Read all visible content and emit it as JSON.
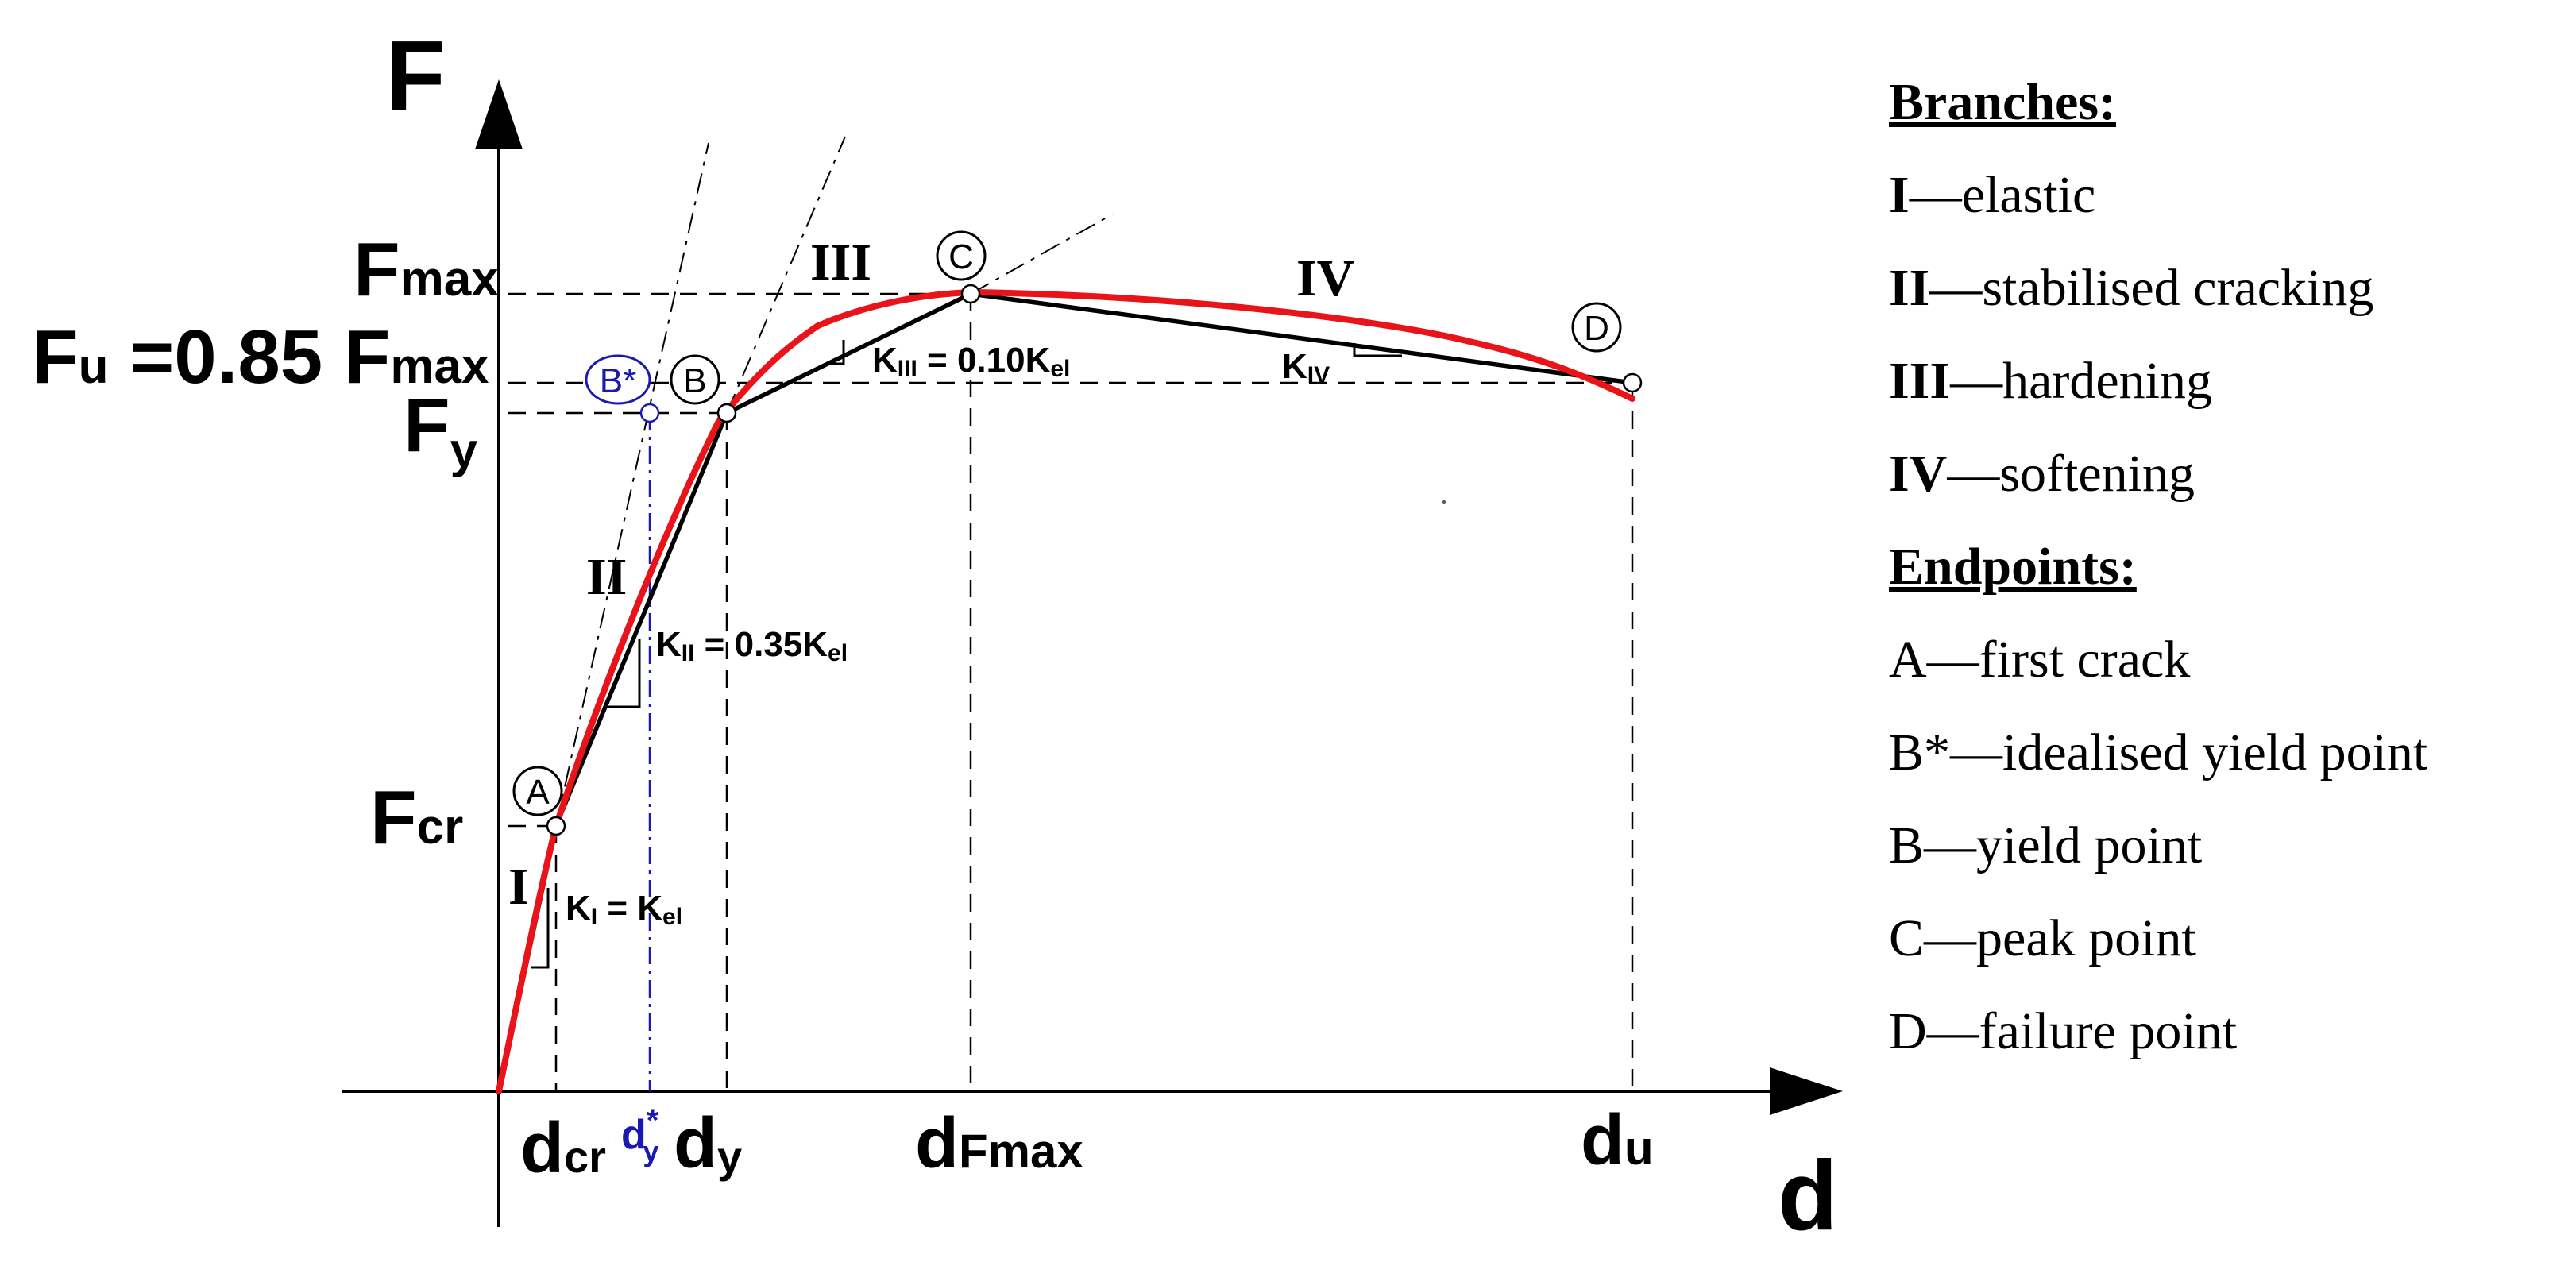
{
  "axes": {
    "y_symbol": "F",
    "x_symbol": "d"
  },
  "force_levels": {
    "F_max": {
      "main": "F",
      "sub": "max"
    },
    "F_u": {
      "main_a": "F",
      "sub_a": "u",
      "main_b": " =0.85 F",
      "sub_b": "max"
    },
    "F_y": {
      "main": "F",
      "sub": "y"
    },
    "F_cr": {
      "main": "F",
      "sub": "cr"
    }
  },
  "displacement_levels": {
    "d_cr": {
      "main": "d",
      "sub": "cr"
    },
    "d_y_star": {
      "main": "d",
      "sub": "y",
      "sup": "*"
    },
    "d_y": {
      "main": "d",
      "sub": "y"
    },
    "d_Fmax": {
      "main": "d",
      "sub": "Fmax"
    },
    "d_u": {
      "main": "d",
      "sub": "u"
    }
  },
  "branch_labels": {
    "I": "I",
    "II": "II",
    "III": "III",
    "IV": "IV"
  },
  "slopes": {
    "K_I": {
      "k": "K",
      "k_sub": "I",
      "rest": " = K",
      "rest_sub": "el"
    },
    "K_II": {
      "k": "K",
      "k_sub": "II",
      "rest": " = 0.35K",
      "rest_sub": "el"
    },
    "K_III": {
      "k": "K",
      "k_sub": "III",
      "rest": " = 0.10K",
      "rest_sub": "el"
    },
    "K_IV": {
      "k": "K",
      "k_sub": "IV"
    }
  },
  "points": {
    "A": "A",
    "B_star": "B*",
    "B": "B",
    "C": "C",
    "D": "D"
  },
  "colors": {
    "experimental_curve": "#e8141a",
    "idealised_curve": "#000000",
    "b_star": "#1a1ab0"
  },
  "legend": {
    "branches_heading": "Branches:",
    "branches": [
      {
        "key": "I",
        "text": "—elastic"
      },
      {
        "key": "II",
        "text": "—stabilised cracking"
      },
      {
        "key": "III",
        "text": "—hardening"
      },
      {
        "key": "IV",
        "text": "—softening"
      }
    ],
    "endpoints_heading": "Endpoints:",
    "endpoints": [
      {
        "key": "A",
        "text": "—first crack"
      },
      {
        "key": "B*",
        "text": "—idealised yield point"
      },
      {
        "key": "B",
        "text": "—yield point"
      },
      {
        "key": "C",
        "text": "—peak point"
      },
      {
        "key": "D",
        "text": "—failure point"
      }
    ]
  }
}
